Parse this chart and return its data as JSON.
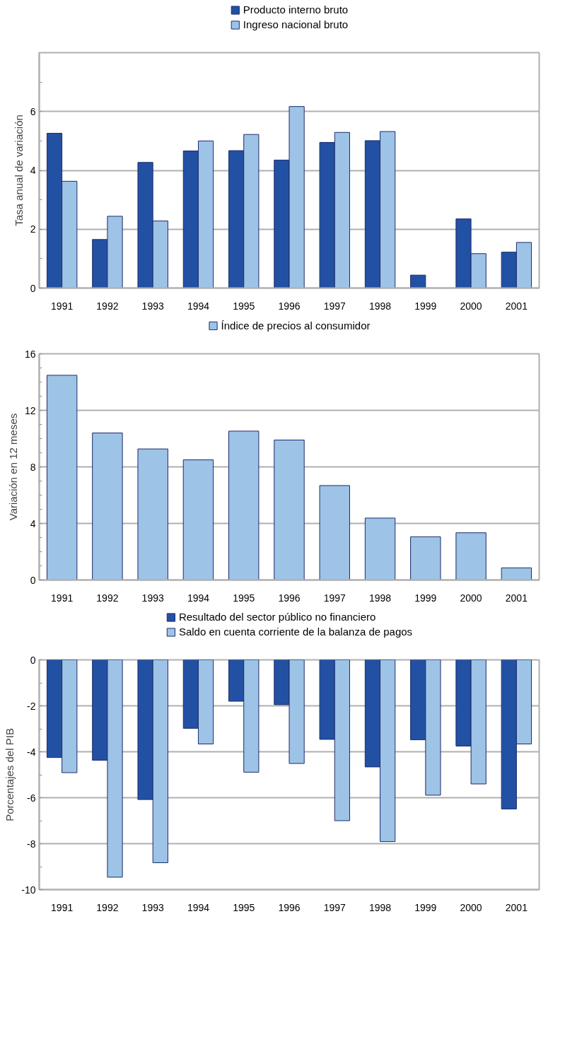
{
  "chart_data": [
    {
      "type": "bar",
      "ylabel": "Tasa anual de variación",
      "categories": [
        "1991",
        "1992",
        "1993",
        "1994",
        "1995",
        "1996",
        "1997",
        "1998",
        "1999",
        "2000",
        "2001"
      ],
      "series": [
        {
          "name": "Producto interno bruto",
          "color": "#2251a3",
          "values": [
            5.26,
            1.65,
            4.27,
            4.66,
            4.67,
            4.35,
            4.95,
            5.01,
            0.44,
            2.35,
            1.22
          ]
        },
        {
          "name": "Ingreso nacional bruto",
          "color": "#9dc3e6",
          "values": [
            3.63,
            2.44,
            2.28,
            5.0,
            5.22,
            6.17,
            5.29,
            5.32,
            null,
            1.17,
            1.55
          ]
        }
      ],
      "ylim": [
        0,
        8
      ],
      "yticks": [
        0,
        {
          "value": 1,
          "label": null
        },
        2,
        {
          "value": 3,
          "label": null
        },
        4,
        {
          "value": 5,
          "label": null
        },
        6,
        {
          "value": 7,
          "label": null
        }
      ],
      "grid": "y",
      "legend": "top"
    },
    {
      "type": "bar",
      "ylabel": "Variación en 12 meses",
      "categories": [
        "1991",
        "1992",
        "1993",
        "1994",
        "1995",
        "1996",
        "1997",
        "1998",
        "1999",
        "2000",
        "2001"
      ],
      "series": [
        {
          "name": "Índice de precios al consumidor",
          "color": "#9dc3e6",
          "values": [
            14.48,
            10.4,
            9.27,
            8.5,
            10.53,
            9.9,
            6.68,
            4.38,
            3.06,
            3.34,
            0.86
          ]
        }
      ],
      "ylim": [
        0,
        16
      ],
      "yticks": [
        0,
        {
          "value": 1,
          "label": null
        },
        {
          "value": 2,
          "label": null
        },
        {
          "value": 3,
          "label": null
        },
        4,
        {
          "value": 5,
          "label": null
        },
        {
          "value": 6,
          "label": null
        },
        {
          "value": 7,
          "label": null
        },
        8,
        {
          "value": 9,
          "label": null
        },
        {
          "value": 10,
          "label": null
        },
        {
          "value": 11,
          "label": null
        },
        12,
        {
          "value": 13,
          "label": null
        },
        {
          "value": 14,
          "label": null
        },
        {
          "value": 15,
          "label": null
        },
        16
      ],
      "grid": "y",
      "legend": "top"
    },
    {
      "type": "bar",
      "ylabel": "Porcentajes del PIB",
      "categories": [
        "1991",
        "1992",
        "1993",
        "1994",
        "1995",
        "1996",
        "1997",
        "1998",
        "1999",
        "2000",
        "2001"
      ],
      "series": [
        {
          "name": "Resultado del sector público no financiero",
          "color": "#2251a3",
          "values": [
            -4.25,
            -4.37,
            -6.08,
            -2.98,
            -1.8,
            -1.95,
            -3.46,
            -4.66,
            -3.48,
            -3.75,
            -6.49
          ]
        },
        {
          "name": "Saldo en cuenta corriente de la balanza de pagos",
          "color": "#9dc3e6",
          "values": [
            -4.91,
            -9.46,
            -8.83,
            -3.66,
            -4.89,
            -4.51,
            -7.0,
            -7.91,
            -5.89,
            -5.4,
            -3.66
          ]
        }
      ],
      "ylim": [
        -10,
        0
      ],
      "yticks": [
        -10,
        {
          "value": -9,
          "label": null
        },
        -8,
        {
          "value": -7,
          "label": null
        },
        -6,
        {
          "value": -5,
          "label": null
        },
        -4,
        {
          "value": -3,
          "label": null
        },
        -2,
        {
          "value": -1,
          "label": null
        },
        0
      ],
      "grid": "y",
      "legend": "top"
    }
  ]
}
